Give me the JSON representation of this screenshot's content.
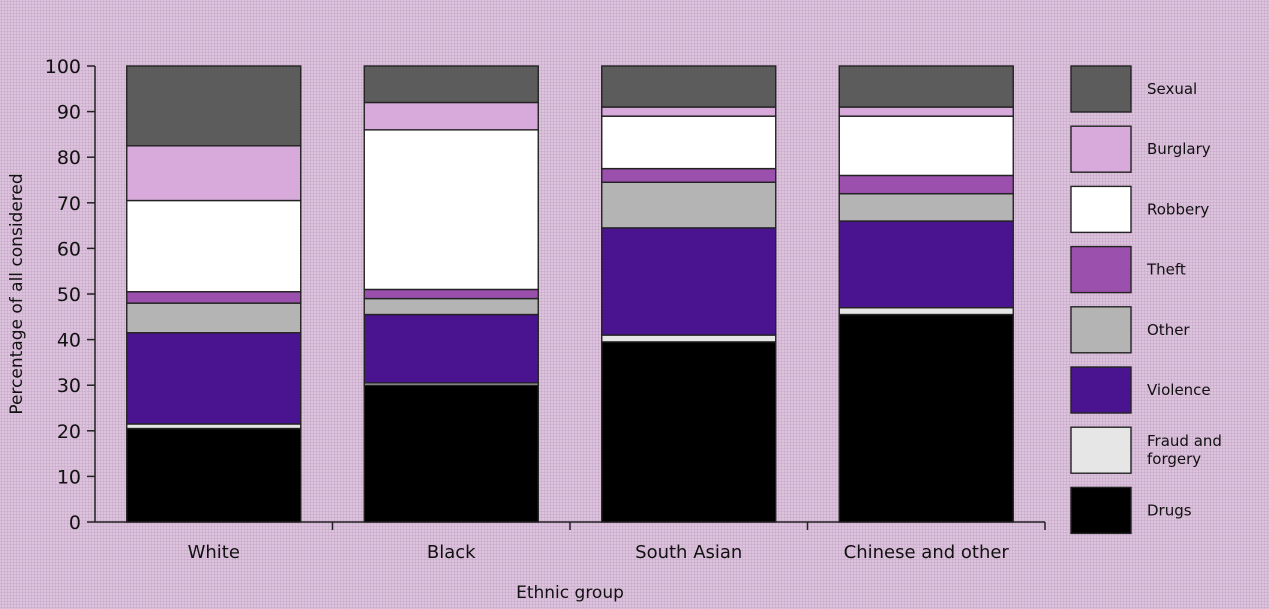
{
  "chart_data": {
    "type": "bar",
    "stacked": true,
    "percent": true,
    "title": "",
    "xlabel": "Ethnic group",
    "ylabel": "Percentage of all considered",
    "ylim": [
      0,
      100
    ],
    "yticks": [
      0,
      10,
      20,
      30,
      40,
      50,
      60,
      70,
      80,
      90,
      100
    ],
    "categories": [
      "White",
      "Black",
      "South Asian",
      "Chinese and other"
    ],
    "series": [
      {
        "name": "Drugs",
        "color": "#000000",
        "values": [
          20.5,
          30,
          39.5,
          45.5
        ]
      },
      {
        "name": "Fraud and forgery",
        "color": "#e6e6e6",
        "values": [
          1,
          0.5,
          1.5,
          1.5
        ]
      },
      {
        "name": "Violence",
        "color": "#4a1490",
        "values": [
          20,
          15,
          23.5,
          19
        ]
      },
      {
        "name": "Other",
        "color": "#b4b4b4",
        "values": [
          6.5,
          3.5,
          10,
          6
        ]
      },
      {
        "name": "Theft",
        "color": "#9a50ac",
        "values": [
          2.5,
          2,
          3,
          4
        ]
      },
      {
        "name": "Robbery",
        "color": "#ffffff",
        "values": [
          20,
          35,
          11.5,
          13
        ]
      },
      {
        "name": "Burglary",
        "color": "#d7aadb",
        "values": [
          12,
          6,
          2,
          2
        ]
      },
      {
        "name": "Sexual",
        "color": "#5c5c5c",
        "values": [
          17.5,
          8,
          9,
          9
        ]
      }
    ],
    "legend": {
      "placement": "right"
    },
    "grid": false
  }
}
